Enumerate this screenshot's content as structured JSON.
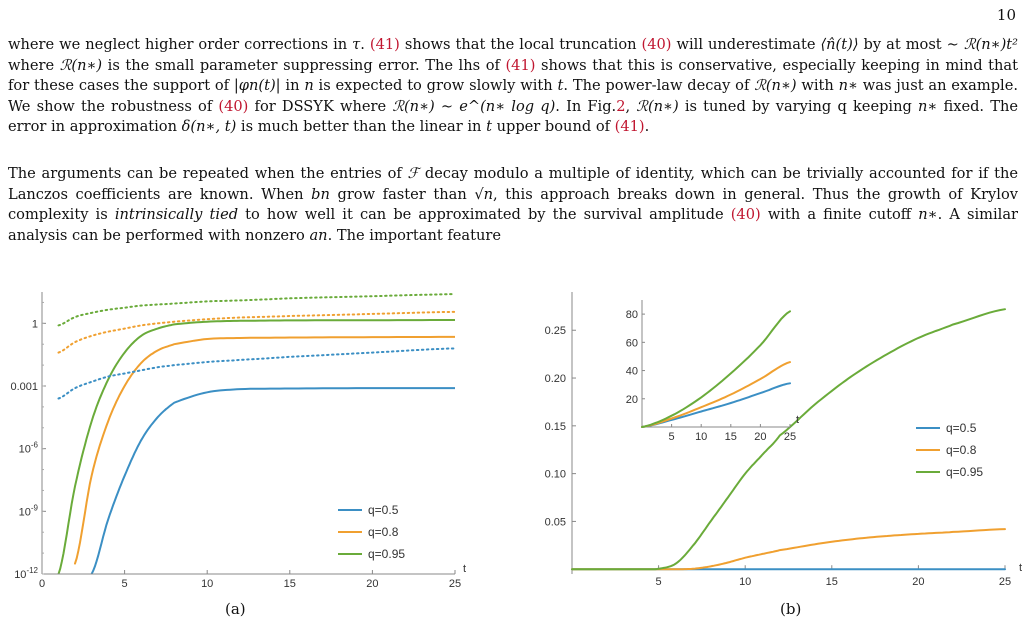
{
  "page_number": "10",
  "paragraph1": {
    "s1a": "where we neglect higher order corrections in ",
    "tau": "τ",
    "s1b": ". ",
    "ref41a": "(41)",
    "s1c": " shows that the local truncation ",
    "ref40a": "(40)",
    "s1d": " will underestimate ",
    "nhat": "⟨n̂(t)⟩",
    "s2a": "by at most ∼ ",
    "R_t2": "ℛ(n∗)t²",
    "s2b": " where ",
    "R1": "ℛ(n∗)",
    "s2c": " is the small parameter suppressing error. The lhs of ",
    "ref41b": "(41)",
    "s2d": " shows that this is conservative, especially keeping in mind that for these cases the support of ",
    "phi": "|φn(t)|",
    "s2e": " in ",
    "n": "n",
    "s2f": " is expected to grow slowly with ",
    "t": "t",
    "s2g": ". The power-law decay of ",
    "R2": "ℛ(n∗)",
    "s2h": " with ",
    "nstar": "n∗",
    "s2i": " was just an example. We show the robustness of ",
    "ref40b": "(40)",
    "s2j": " for DSSYK where ",
    "R3": "ℛ(n∗) ∼ e^(n∗ log q)",
    "s2k": ". In Fig.",
    "fig2": "2",
    "s2l": ", ",
    "R4": "ℛ(n∗)",
    "s2m": " is tuned by varying ",
    "q": "q",
    "s2n": " keeping ",
    "nstar2": "n∗",
    "s2o": " fixed. The error in approximation ",
    "delta": "δ(n∗, t)",
    "s2p": " is much better than the linear in ",
    "t2": "t",
    "s2q": " upper bound of ",
    "ref41c": "(41)",
    "s2r": "."
  },
  "paragraph2": {
    "p1": "The arguments can be repeated when the entries of ",
    "F": "ℱ",
    "p2": " decay modulo a multiple of identity, which can be trivially accounted for if the Lanczos coefficients are known. When ",
    "bn": "bn",
    "p3": " grow faster than ",
    "sqrtn": "√n",
    "p4": ", this approach breaks down in general. Thus the growth of Krylov complexity is ",
    "emph": "intrinsically tied",
    "p5": " to how well it can be approximated by the survival amplitude ",
    "ref40": "(40)",
    "p6": " with a finite cutoff ",
    "nstar": "n∗",
    "p7": ". A similar analysis can be performed with nonzero ",
    "an": "an",
    "p8": ". The important feature"
  },
  "colors": {
    "q05": "#3b8fc4",
    "q08": "#f0a030",
    "q095": "#6aab3a",
    "link": "#c0152f"
  },
  "figure_a": {
    "caption": "(a)",
    "chart_data": {
      "type": "line",
      "scale": "log-y",
      "x": [
        0,
        1,
        2,
        3,
        4,
        5,
        6,
        7,
        8,
        10,
        12,
        15,
        20,
        25
      ],
      "xlim": [
        0,
        25
      ],
      "ylim_log10": [
        -12,
        1.5
      ],
      "xticks": [
        "0",
        "5",
        "10",
        "15",
        "20",
        "25"
      ],
      "xaxis_label": "t",
      "yticks": [
        {
          "exp": 0,
          "label": "1"
        },
        {
          "exp": -3,
          "label": "0.001"
        },
        {
          "exp": -6,
          "label": "10^-6"
        },
        {
          "exp": -9,
          "label": "10^-9"
        },
        {
          "exp": -12,
          "label": "10^-12"
        }
      ],
      "series": [
        {
          "name": "q=0.5",
          "color_key": "q05",
          "style": "solid",
          "log10_values": [
            null,
            null,
            null,
            -12,
            -9.4,
            -7.3,
            -5.6,
            -4.5,
            -3.8,
            -3.3,
            -3.15,
            -3.12,
            -3.1,
            -3.1
          ]
        },
        {
          "name": "q=0.8",
          "color_key": "q08",
          "style": "solid",
          "log10_values": [
            null,
            null,
            -11.5,
            -7.3,
            -4.7,
            -3.0,
            -1.9,
            -1.3,
            -1.0,
            -0.75,
            -0.7,
            -0.68,
            -0.66,
            -0.65
          ]
        },
        {
          "name": "q=0.95",
          "color_key": "q095",
          "style": "solid",
          "log10_values": [
            null,
            -12,
            -7.8,
            -4.7,
            -2.7,
            -1.4,
            -0.6,
            -0.25,
            -0.05,
            0.08,
            0.12,
            0.14,
            0.15,
            0.16
          ]
        },
        {
          "style": "dotted",
          "color_key": "q05",
          "log10_values": [
            null,
            -3.6,
            -3.1,
            -2.8,
            -2.55,
            -2.4,
            -2.25,
            -2.1,
            -2.0,
            -1.85,
            -1.75,
            -1.6,
            -1.4,
            -1.2
          ]
        },
        {
          "style": "dotted",
          "color_key": "q08",
          "log10_values": [
            null,
            -1.4,
            -0.9,
            -0.6,
            -0.4,
            -0.25,
            -0.1,
            0,
            0.08,
            0.2,
            0.28,
            0.35,
            0.45,
            0.55
          ]
        },
        {
          "style": "dotted",
          "color_key": "q095",
          "log10_values": [
            null,
            -0.1,
            0.3,
            0.5,
            0.65,
            0.75,
            0.85,
            0.9,
            0.95,
            1.05,
            1.1,
            1.2,
            1.3,
            1.4
          ]
        }
      ],
      "legend": [
        "q=0.5",
        "q=0.8",
        "q=0.95"
      ],
      "legend_position": "bottom-right"
    }
  },
  "figure_b": {
    "caption": "(b)",
    "chart_data": {
      "type": "line",
      "x": [
        0,
        2,
        4,
        5,
        6,
        7,
        8,
        9,
        10,
        11,
        12,
        14,
        16,
        18,
        20,
        22,
        25
      ],
      "xlim": [
        0,
        25
      ],
      "ylim": [
        -0.005,
        0.29
      ],
      "xticks": [
        "5",
        "10",
        "15",
        "20",
        "25"
      ],
      "xaxis_label": "t",
      "yticks": [
        "0.05",
        "0.10",
        "0.15",
        "0.20",
        "0.25"
      ],
      "series": [
        {
          "name": "q=0.5",
          "color_key": "q05",
          "values": [
            0,
            0,
            0,
            0,
            0,
            0,
            0,
            0,
            0,
            0,
            0,
            0,
            0,
            0,
            0,
            0,
            0
          ]
        },
        {
          "name": "q=0.8",
          "color_key": "q08",
          "values": [
            0,
            0,
            0,
            0,
            0,
            0.0005,
            0.003,
            0.007,
            0.012,
            0.016,
            0.02,
            0.026,
            0.031,
            0.0345,
            0.037,
            0.039,
            0.042
          ]
        },
        {
          "name": "q=0.95",
          "color_key": "q095",
          "values": [
            0,
            0,
            0,
            0.0005,
            0.006,
            0.025,
            0.05,
            0.075,
            0.1,
            0.12,
            0.14,
            0.172,
            0.2,
            0.223,
            0.242,
            0.256,
            0.272
          ]
        }
      ],
      "legend": [
        "q=0.5",
        "q=0.8",
        "q=0.95"
      ],
      "legend_position": "right",
      "inset": {
        "x": [
          0,
          5,
          10,
          15,
          20,
          25
        ],
        "xlim": [
          0,
          25
        ],
        "ylim": [
          0,
          90
        ],
        "xticks": [
          "5",
          "10",
          "15",
          "20",
          "25"
        ],
        "xaxis_label": "t",
        "yticks": [
          "20",
          "40",
          "60",
          "80"
        ],
        "series": [
          {
            "color_key": "q05",
            "values": [
              0,
              5,
              11,
              17,
              24,
              31
            ]
          },
          {
            "color_key": "q08",
            "values": [
              0,
              6,
              14,
              23,
              34,
              46
            ]
          },
          {
            "color_key": "q095",
            "values": [
              0,
              8,
              21,
              38,
              58,
              82
            ]
          }
        ]
      }
    }
  }
}
